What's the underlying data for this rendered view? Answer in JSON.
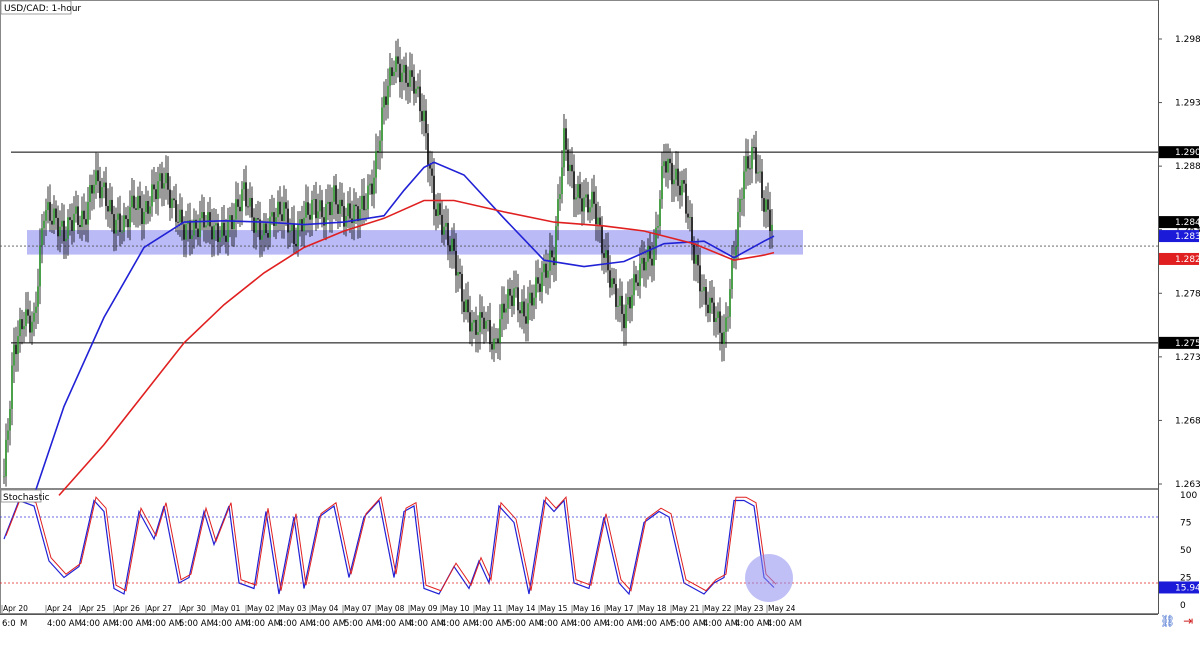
{
  "chart_data": {
    "type": "candlestick",
    "title": "USD/CAD: 1-hour",
    "sub_panel_title": "Stochastic",
    "price_axis_labels": [
      "1.2989",
      "1.2939",
      "1.2889",
      "1.2839",
      "1.2789",
      "1.2739",
      "1.2689",
      "1.2639"
    ],
    "price_ylim": [
      1.263,
      1.3026
    ],
    "stoch_axis_labels": [
      "100",
      "75",
      "50",
      "25",
      "0"
    ],
    "stoch_ylim": [
      0,
      100
    ],
    "x_date_labels": [
      "Apr 20",
      "Apr 24",
      "Apr 25",
      "Apr 26",
      "Apr 27",
      "Apr 30",
      "May 01",
      "May 02",
      "May 03",
      "May 04",
      "May 07",
      "May 08",
      "May 09",
      "May 10",
      "May 11",
      "May 14",
      "May 15",
      "May 16",
      "May 17",
      "May 18",
      "May 21",
      "May 22",
      "May 23",
      "May 24"
    ],
    "x_time_labels": [
      "6:0",
      "M",
      "4:00 AM",
      "4:00 AM",
      "4:00 AM",
      "4:00 AM",
      "5:00 AM",
      "4:00 AM",
      "4:00 AM",
      "4:00 AM",
      "4:00 AM",
      "5:00 AM",
      "4:00 AM",
      "4:00 AM",
      "4:00 AM",
      "4:00 AM",
      "5:00 AM",
      "4:00 AM",
      "4:00 AM",
      "4:00 AM",
      "4:00 AM",
      "5:00 AM",
      "4:00 AM",
      "4:00 AM",
      "4:00 AM"
    ],
    "horizontal_levels": [
      {
        "value": 1.29,
        "label": "1.2900",
        "color": "#000000"
      },
      {
        "value": 1.275,
        "label": "1.2750",
        "color": "#000000"
      }
    ],
    "current_price": {
      "value": 1.2834,
      "label": "1.2834",
      "color": "#1a1ad8"
    },
    "ma_red_last": {
      "value": 1.2821,
      "label": "1.2821",
      "color": "#e02020"
    },
    "level_1_2845": {
      "value": 1.2845,
      "label": "1.2845"
    },
    "support_zone": {
      "low": 1.2821,
      "high": 1.2834,
      "color": "#8c8cf0"
    },
    "stoch_last": {
      "value": 15.94,
      "label": "15.94"
    },
    "stoch_levels": [
      80,
      20
    ],
    "series": [
      {
        "name": "close",
        "x": [
          0,
          10,
          20,
          30,
          40,
          50,
          60,
          70,
          80,
          90,
          100,
          110,
          120,
          130,
          140,
          150,
          160,
          170,
          180,
          190,
          200,
          210,
          220,
          230,
          240,
          250,
          260,
          270,
          280,
          290,
          300,
          310,
          320,
          330,
          340,
          350,
          360,
          370,
          380,
          390,
          400,
          410,
          420,
          430,
          440,
          450,
          460,
          470,
          480,
          490,
          500,
          510,
          520,
          530,
          540,
          550,
          560,
          570,
          580,
          590,
          600,
          610,
          620,
          630,
          640,
          650,
          660,
          670,
          680,
          690,
          700,
          710,
          720,
          730,
          740,
          750,
          760,
          770
        ],
        "values": [
          1.2645,
          1.2745,
          1.277,
          1.2765,
          1.2855,
          1.2848,
          1.2835,
          1.285,
          1.2845,
          1.288,
          1.2868,
          1.2845,
          1.2842,
          1.2862,
          1.285,
          1.287,
          1.288,
          1.2855,
          1.284,
          1.2838,
          1.2848,
          1.2838,
          1.2835,
          1.285,
          1.287,
          1.2845,
          1.2835,
          1.285,
          1.2855,
          1.283,
          1.285,
          1.2858,
          1.285,
          1.2865,
          1.285,
          1.2852,
          1.2858,
          1.288,
          1.294,
          1.297,
          1.296,
          1.2955,
          1.2925,
          1.286,
          1.284,
          1.282,
          1.278,
          1.276,
          1.277,
          1.2745,
          1.278,
          1.279,
          1.277,
          1.279,
          1.2805,
          1.282,
          1.291,
          1.287,
          1.286,
          1.286,
          1.282,
          1.279,
          1.277,
          1.2795,
          1.2815,
          1.282,
          1.2895,
          1.288,
          1.287,
          1.282,
          1.2785,
          1.2775,
          1.2752,
          1.282,
          1.2885,
          1.29,
          1.286,
          1.2838
        ]
      },
      {
        "name": "blue",
        "x": [
          30,
          60,
          100,
          140,
          180,
          220,
          260,
          300,
          340,
          380,
          400,
          420,
          430,
          460,
          500,
          540,
          580,
          620,
          660,
          700,
          730,
          760,
          770
        ],
        "values": [
          1.263,
          1.27,
          1.277,
          1.2825,
          1.2845,
          1.2846,
          1.2845,
          1.2843,
          1.2845,
          1.285,
          1.287,
          1.2888,
          1.2892,
          1.2882,
          1.2848,
          1.2815,
          1.281,
          1.2814,
          1.2828,
          1.283,
          1.2817,
          1.283,
          1.2834
        ]
      },
      {
        "name": "red",
        "x": [
          55,
          100,
          140,
          180,
          220,
          260,
          300,
          340,
          380,
          420,
          450,
          500,
          550,
          600,
          640,
          690,
          730,
          760,
          770
        ],
        "values": [
          1.263,
          1.267,
          1.271,
          1.275,
          1.278,
          1.2805,
          1.2825,
          1.2838,
          1.2848,
          1.2862,
          1.2862,
          1.2853,
          1.2845,
          1.2842,
          1.2838,
          1.2828,
          1.2815,
          1.2819,
          1.2821
        ]
      },
      {
        "name": "stochastic",
        "x": [
          0,
          15,
          30,
          45,
          60,
          75,
          90,
          100,
          110,
          120,
          135,
          150,
          160,
          175,
          185,
          200,
          210,
          225,
          235,
          250,
          262,
          275,
          290,
          300,
          315,
          330,
          345,
          360,
          375,
          390,
          400,
          410,
          420,
          435,
          450,
          465,
          475,
          485,
          495,
          510,
          525,
          540,
          550,
          560,
          570,
          585,
          600,
          615,
          625,
          640,
          655,
          665,
          680,
          690,
          700,
          710,
          720,
          730,
          740,
          750,
          760,
          770
        ],
        "values": [
          60,
          95,
          90,
          40,
          25,
          35,
          95,
          85,
          15,
          10,
          85,
          60,
          90,
          20,
          25,
          85,
          55,
          90,
          20,
          15,
          85,
          10,
          80,
          15,
          80,
          90,
          25,
          80,
          95,
          25,
          85,
          90,
          15,
          10,
          35,
          15,
          40,
          20,
          90,
          75,
          10,
          95,
          85,
          95,
          20,
          15,
          80,
          20,
          10,
          75,
          85,
          80,
          20,
          15,
          10,
          20,
          25,
          95,
          95,
          90,
          25,
          15.94
        ]
      }
    ]
  }
}
